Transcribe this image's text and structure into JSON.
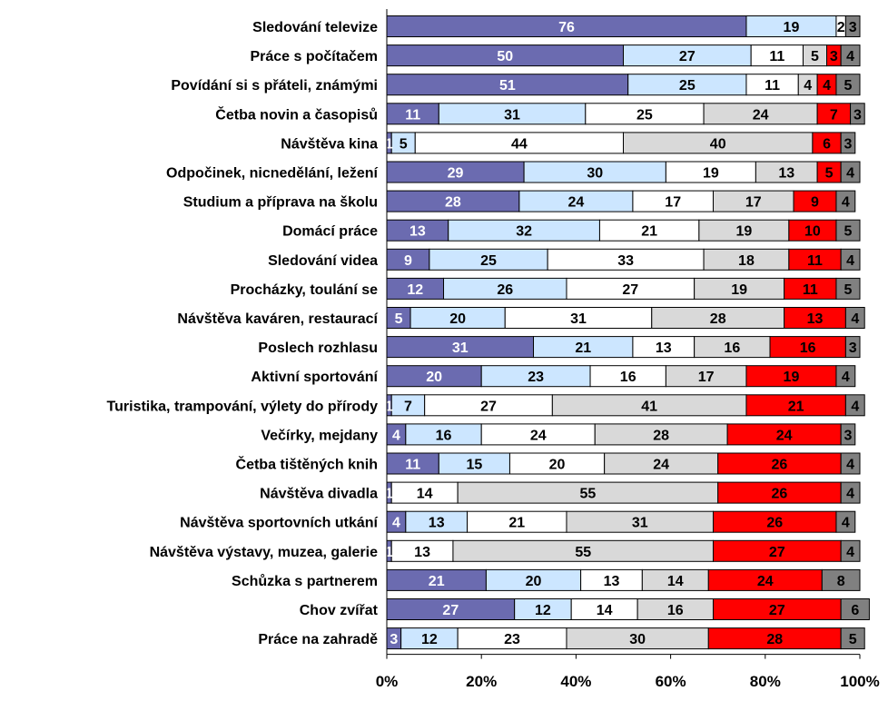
{
  "chart_data": {
    "type": "bar",
    "orientation": "horizontal",
    "stacked": "percent",
    "title": "",
    "xlabel": "",
    "ylabel": "",
    "xlim": [
      0,
      100
    ],
    "x_ticks": [
      "0%",
      "20%",
      "40%",
      "60%",
      "80%",
      "100%"
    ],
    "grid": false,
    "legend": "none",
    "categories": [
      "Sledování televize",
      "Práce s počítačem",
      "Povídání si s přáteli, známými",
      "Četba novin a časopisů",
      "Návštěva kina",
      "Odpočinek, nicnedělání, ležení",
      "Studium a  příprava na školu",
      "Domácí práce",
      "Sledování videa",
      "Procházky, toulání se",
      "Návštěva kaváren, restaurací",
      "Poslech rozhlasu",
      "Aktivní sportování",
      "Turistika, trampování, výlety do přírody",
      "Večírky, mejdany",
      "Četba tištěných knih",
      "Návštěva divadla",
      "Návštěva sportovních utkání",
      "Návštěva výstavy, muzea, galerie",
      "Schůzka s partnerem",
      "Chov zvířat",
      "Práce na zahradě"
    ],
    "series": [
      {
        "color": "#6b6bb0",
        "label_color": "#ffffff",
        "values": [
          76,
          50,
          51,
          11,
          1,
          29,
          28,
          13,
          9,
          12,
          5,
          31,
          20,
          1,
          4,
          11,
          1,
          4,
          1,
          21,
          27,
          3
        ]
      },
      {
        "color": "#cce6ff",
        "label_color": "#000000",
        "values": [
          19,
          27,
          25,
          31,
          5,
          30,
          24,
          32,
          25,
          26,
          20,
          21,
          23,
          7,
          16,
          15,
          0,
          13,
          0,
          20,
          12,
          12
        ]
      },
      {
        "color": "#ffffff",
        "label_color": "#000000",
        "values": [
          2,
          11,
          11,
          25,
          44,
          19,
          17,
          21,
          33,
          27,
          31,
          13,
          16,
          27,
          24,
          20,
          14,
          21,
          13,
          13,
          14,
          23
        ]
      },
      {
        "color": "#d9d9d9",
        "label_color": "#000000",
        "values": [
          0,
          5,
          4,
          24,
          40,
          13,
          17,
          19,
          18,
          19,
          28,
          16,
          17,
          41,
          28,
          24,
          55,
          31,
          55,
          14,
          16,
          30
        ]
      },
      {
        "color": "#ff0000",
        "label_color": "#000000",
        "values": [
          0,
          3,
          4,
          7,
          6,
          5,
          9,
          10,
          11,
          11,
          13,
          16,
          19,
          21,
          24,
          26,
          26,
          26,
          27,
          24,
          27,
          28
        ]
      },
      {
        "color": "#808080",
        "label_color": "#000000",
        "values": [
          3,
          4,
          5,
          3,
          3,
          4,
          4,
          5,
          4,
          5,
          4,
          3,
          4,
          4,
          3,
          4,
          4,
          4,
          4,
          8,
          6,
          5
        ]
      }
    ]
  }
}
